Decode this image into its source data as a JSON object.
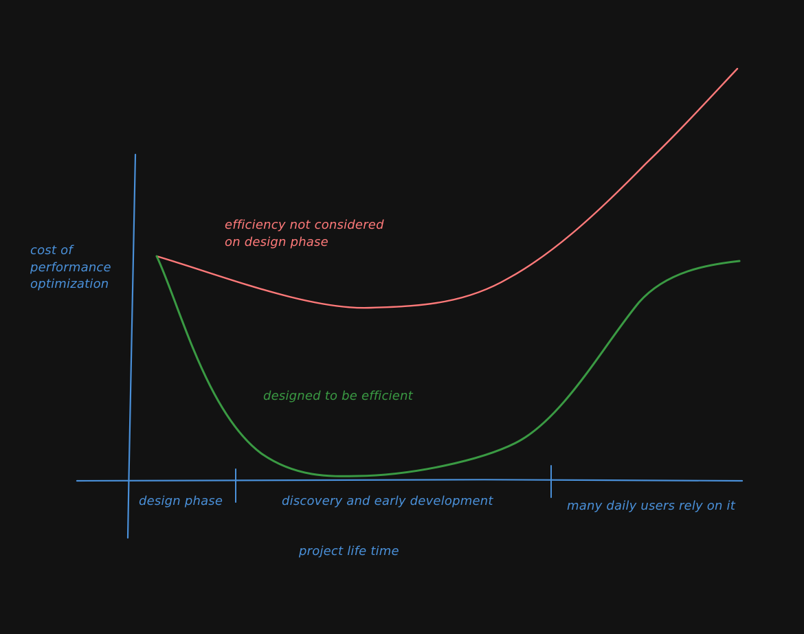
{
  "colors": {
    "background": "#121212",
    "axis": "#4a90d9",
    "not_considered": "#ff7a7a",
    "efficient": "#3a9a43"
  },
  "axis": {
    "y_label_lines": [
      "cost of",
      "performance",
      "optimization"
    ],
    "x_label": "project life time"
  },
  "phases": [
    {
      "label": "design phase"
    },
    {
      "label": "discovery and early development"
    },
    {
      "label": "many daily users rely on it"
    }
  ],
  "curves": {
    "not_considered": {
      "label_lines": [
        "efficiency not considered",
        "on design phase"
      ]
    },
    "efficient": {
      "label": "designed to be efficient"
    }
  }
}
